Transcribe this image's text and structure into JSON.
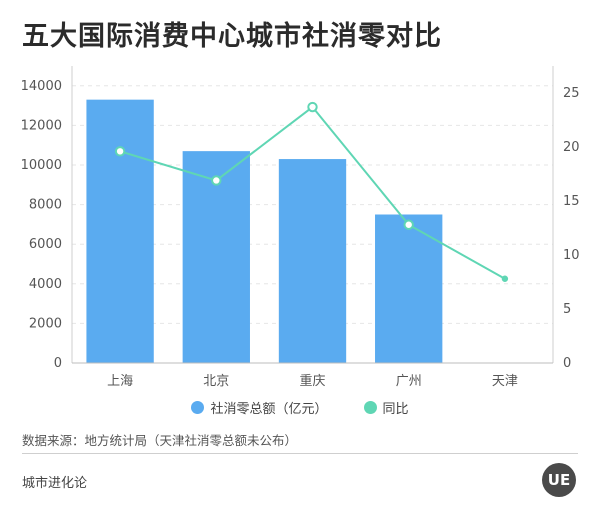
{
  "title": "五大国际消费中心城市社消零对比",
  "chart_data": {
    "type": "bar+line",
    "categories": [
      "上海",
      "北京",
      "重庆",
      "广州",
      "天津"
    ],
    "series": [
      {
        "name": "社消零总额（亿元）",
        "type": "bar",
        "axis": "left",
        "color": "#5aabf0",
        "values": [
          13300,
          10700,
          10300,
          7500,
          null
        ]
      },
      {
        "name": "同比",
        "type": "line",
        "axis": "right",
        "color": "#5fd6b4",
        "values": [
          19.6,
          16.9,
          23.7,
          12.8,
          7.8
        ]
      }
    ],
    "y_left": {
      "ylim": [
        0,
        15000
      ],
      "ticks": [
        0,
        2000,
        4000,
        6000,
        8000,
        10000,
        12000,
        14000
      ]
    },
    "y_right": {
      "ylim": [
        0,
        27.5
      ],
      "ticks": [
        0,
        5,
        10,
        15,
        20,
        25
      ]
    }
  },
  "legend": {
    "bar_label": "社消零总额（亿元）",
    "line_label": "同比"
  },
  "source": "数据来源：地方统计局（天津社消零总额未公布）",
  "brand": "城市进化论",
  "logo_text": "UE",
  "colors": {
    "bar": "#5aabf0",
    "line": "#5fd6b4"
  }
}
